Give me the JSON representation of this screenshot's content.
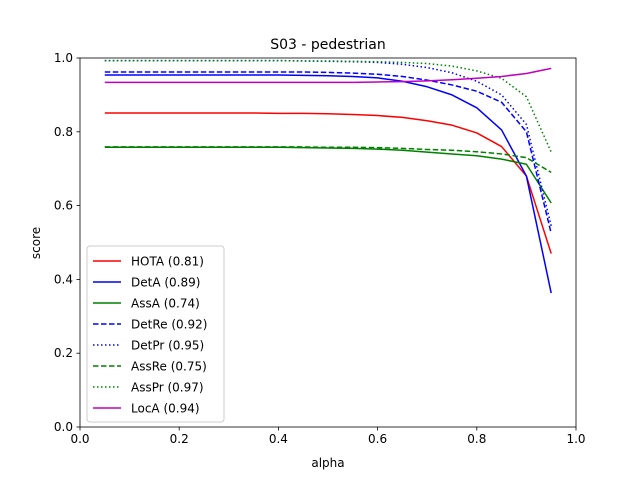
{
  "chart_data": {
    "type": "line",
    "title": "S03 - pedestrian",
    "xlabel": "alpha",
    "ylabel": "score",
    "xlim": [
      0.0,
      1.0
    ],
    "ylim": [
      0.0,
      1.0
    ],
    "xticks": [
      "0.0",
      "0.2",
      "0.4",
      "0.6",
      "0.8",
      "1.0"
    ],
    "yticks": [
      "0.0",
      "0.2",
      "0.4",
      "0.6",
      "0.8",
      "1.0"
    ],
    "grid": false,
    "legend_position": "lower-left",
    "x": [
      0.05,
      0.1,
      0.15,
      0.2,
      0.25,
      0.3,
      0.35,
      0.4,
      0.45,
      0.5,
      0.55,
      0.6,
      0.65,
      0.7,
      0.75,
      0.8,
      0.85,
      0.9,
      0.95
    ],
    "series": [
      {
        "name": "HOTA (0.81)",
        "color": "#ff0000",
        "dash": "solid",
        "values": [
          0.851,
          0.851,
          0.851,
          0.851,
          0.851,
          0.851,
          0.851,
          0.85,
          0.85,
          0.849,
          0.847,
          0.844,
          0.839,
          0.83,
          0.818,
          0.797,
          0.76,
          0.68,
          0.47
        ]
      },
      {
        "name": "DetA (0.89)",
        "color": "#0000ff",
        "dash": "solid",
        "values": [
          0.954,
          0.954,
          0.954,
          0.954,
          0.954,
          0.954,
          0.954,
          0.954,
          0.953,
          0.952,
          0.95,
          0.946,
          0.937,
          0.922,
          0.9,
          0.865,
          0.805,
          0.68,
          0.363
        ]
      },
      {
        "name": "AssA (0.74)",
        "color": "#008000",
        "dash": "solid",
        "values": [
          0.758,
          0.758,
          0.758,
          0.758,
          0.758,
          0.758,
          0.758,
          0.758,
          0.757,
          0.756,
          0.755,
          0.753,
          0.75,
          0.745,
          0.74,
          0.735,
          0.726,
          0.712,
          0.607
        ]
      },
      {
        "name": "DetRe (0.92)",
        "color": "#0000ff",
        "dash": "dashed",
        "values": [
          0.962,
          0.962,
          0.962,
          0.962,
          0.962,
          0.962,
          0.962,
          0.962,
          0.962,
          0.961,
          0.959,
          0.956,
          0.95,
          0.94,
          0.927,
          0.91,
          0.88,
          0.8,
          0.525
        ]
      },
      {
        "name": "DetPr (0.95)",
        "color": "#0000ff",
        "dash": "dotted",
        "values": [
          0.993,
          0.993,
          0.993,
          0.993,
          0.993,
          0.993,
          0.993,
          0.993,
          0.992,
          0.991,
          0.99,
          0.988,
          0.983,
          0.974,
          0.96,
          0.937,
          0.9,
          0.82,
          0.545
        ]
      },
      {
        "name": "AssRe (0.75)",
        "color": "#008000",
        "dash": "dashed",
        "values": [
          0.759,
          0.759,
          0.759,
          0.759,
          0.759,
          0.759,
          0.759,
          0.759,
          0.759,
          0.758,
          0.758,
          0.757,
          0.755,
          0.752,
          0.75,
          0.746,
          0.74,
          0.73,
          0.69
        ]
      },
      {
        "name": "AssPr (0.97)",
        "color": "#008000",
        "dash": "dotted",
        "values": [
          0.993,
          0.993,
          0.993,
          0.993,
          0.993,
          0.993,
          0.993,
          0.993,
          0.992,
          0.992,
          0.991,
          0.99,
          0.988,
          0.985,
          0.978,
          0.965,
          0.945,
          0.895,
          0.745
        ]
      },
      {
        "name": "LocA (0.94)",
        "color": "#bf00bf",
        "dash": "solid",
        "values": [
          0.934,
          0.934,
          0.934,
          0.934,
          0.934,
          0.934,
          0.934,
          0.934,
          0.934,
          0.934,
          0.934,
          0.935,
          0.936,
          0.938,
          0.941,
          0.945,
          0.95,
          0.958,
          0.972
        ]
      }
    ]
  }
}
